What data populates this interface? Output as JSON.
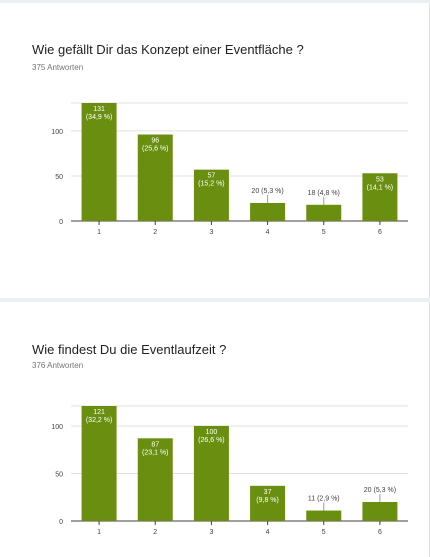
{
  "questions": [
    {
      "title": "Wie gefällt Dir das Konzept einer Eventfläche ?",
      "responses": "375 Antworten"
    },
    {
      "title": "Wie findest Du die Eventlaufzeit ?",
      "responses": "376 Antworten"
    }
  ],
  "chart_data": [
    {
      "type": "bar",
      "categories": [
        "1",
        "2",
        "3",
        "4",
        "5",
        "6"
      ],
      "values": [
        131,
        96,
        57,
        20,
        18,
        53
      ],
      "labels": [
        "131",
        "96",
        "57",
        "20 (5,3 %)",
        "18 (4,8 %)",
        "53"
      ],
      "sublabels": [
        "(34,9 %)",
        "(25,6 %)",
        "(15,2 %)",
        "",
        "",
        "(14,1 %)"
      ],
      "yticks": [
        "0",
        "50",
        "100"
      ],
      "ylim": [
        0,
        131
      ],
      "grid": true,
      "bar_color": "#6a8f10"
    },
    {
      "type": "bar",
      "categories": [
        "1",
        "2",
        "3",
        "4",
        "5",
        "6"
      ],
      "values": [
        121,
        87,
        100,
        37,
        11,
        20
      ],
      "labels": [
        "121",
        "87",
        "100",
        "37",
        "11 (2,9 %)",
        "20 (5,3 %)"
      ],
      "sublabels": [
        "(32,2 %)",
        "(23,1 %)",
        "(26,6 %)",
        "(9,8 %)",
        "",
        ""
      ],
      "yticks": [
        "0",
        "50",
        "100"
      ],
      "ylim": [
        0,
        121
      ],
      "grid": true,
      "bar_color": "#6a8f10"
    }
  ]
}
